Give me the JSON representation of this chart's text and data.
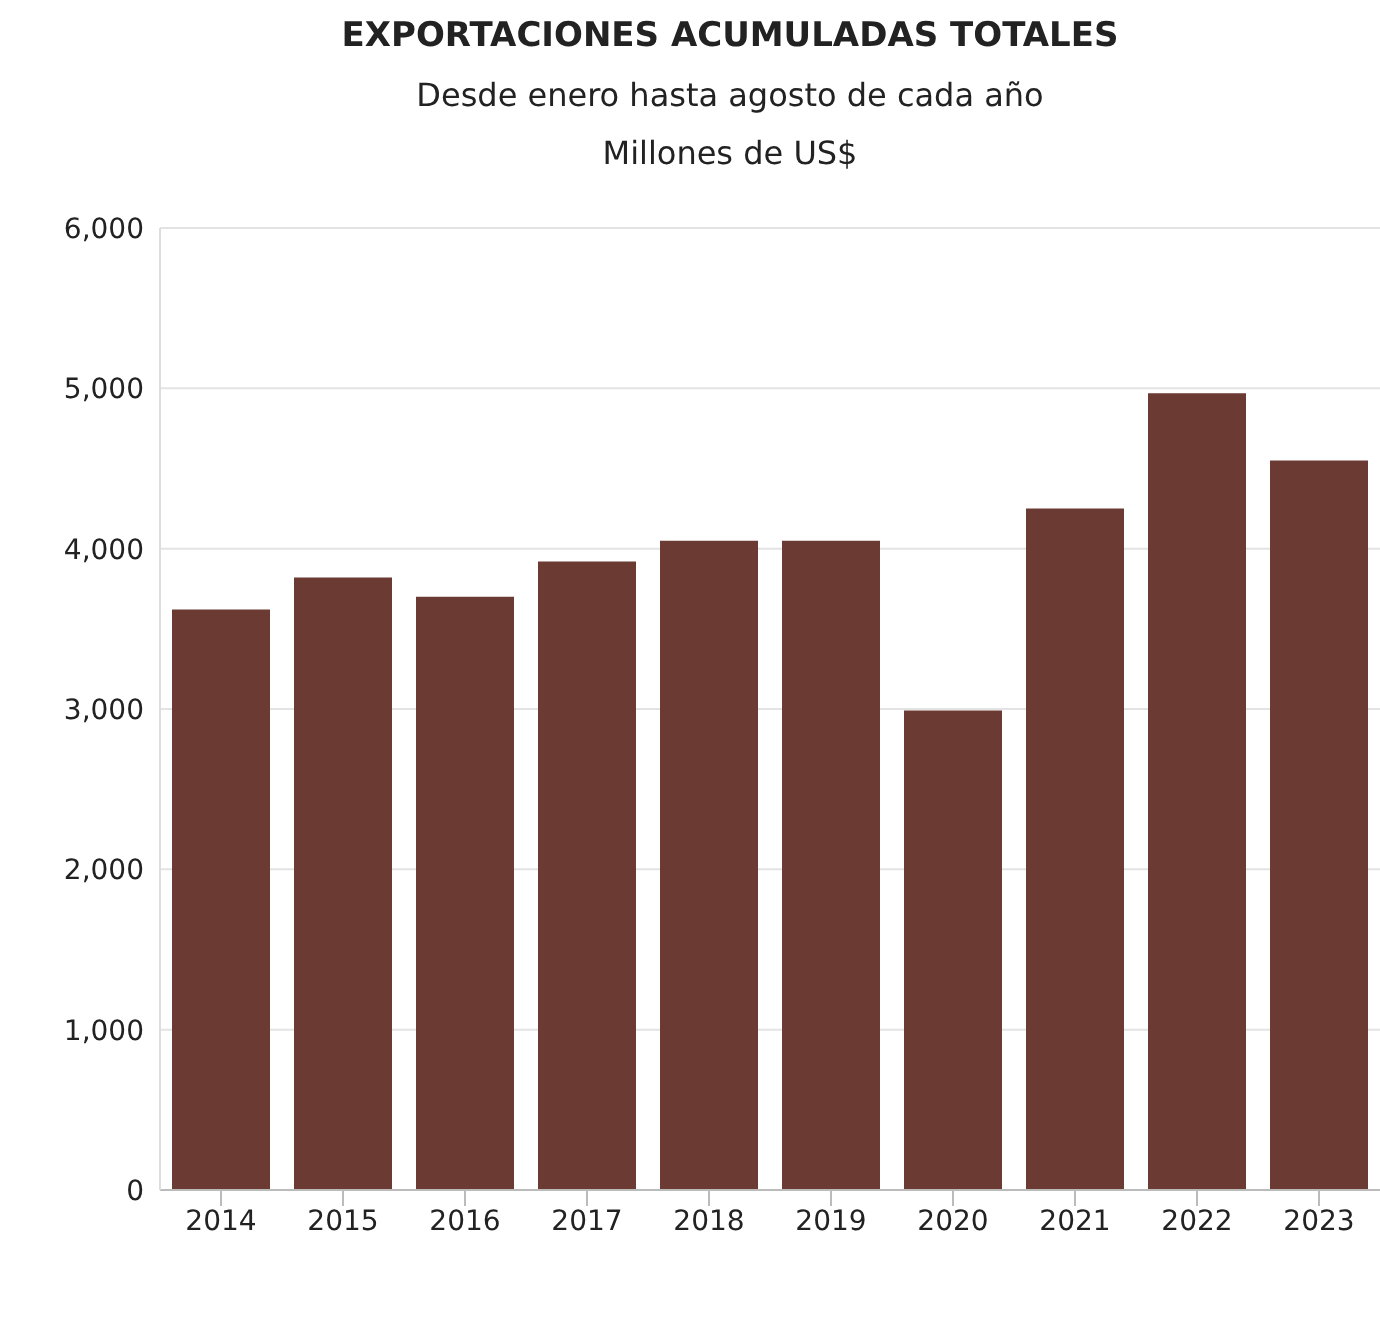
{
  "chart_data": {
    "type": "bar",
    "title": "EXPORTACIONES ACUMULADAS TOTALES",
    "subtitle": "Desde enero hasta agosto de cada año\nMillones de US$",
    "categories": [
      "2014",
      "2015",
      "2016",
      "2017",
      "2018",
      "2019",
      "2020",
      "2021",
      "2022",
      "2023"
    ],
    "values": [
      3620,
      3820,
      3700,
      3920,
      4050,
      4050,
      2990,
      4250,
      4970,
      4550
    ],
    "color": "#6b3a32",
    "ylim": [
      0,
      6000
    ],
    "yticks": [
      0,
      {
        "value": 1000,
        "label": "1,000"
      },
      {
        "value": 2000,
        "label": "2,000"
      },
      {
        "value": 3000,
        "label": "3,000"
      },
      {
        "value": 4000,
        "label": "4,000"
      },
      {
        "value": 5000,
        "label": "5,000"
      },
      {
        "value": 6000,
        "label": "6,000"
      }
    ],
    "grid": "y",
    "legend": false
  }
}
